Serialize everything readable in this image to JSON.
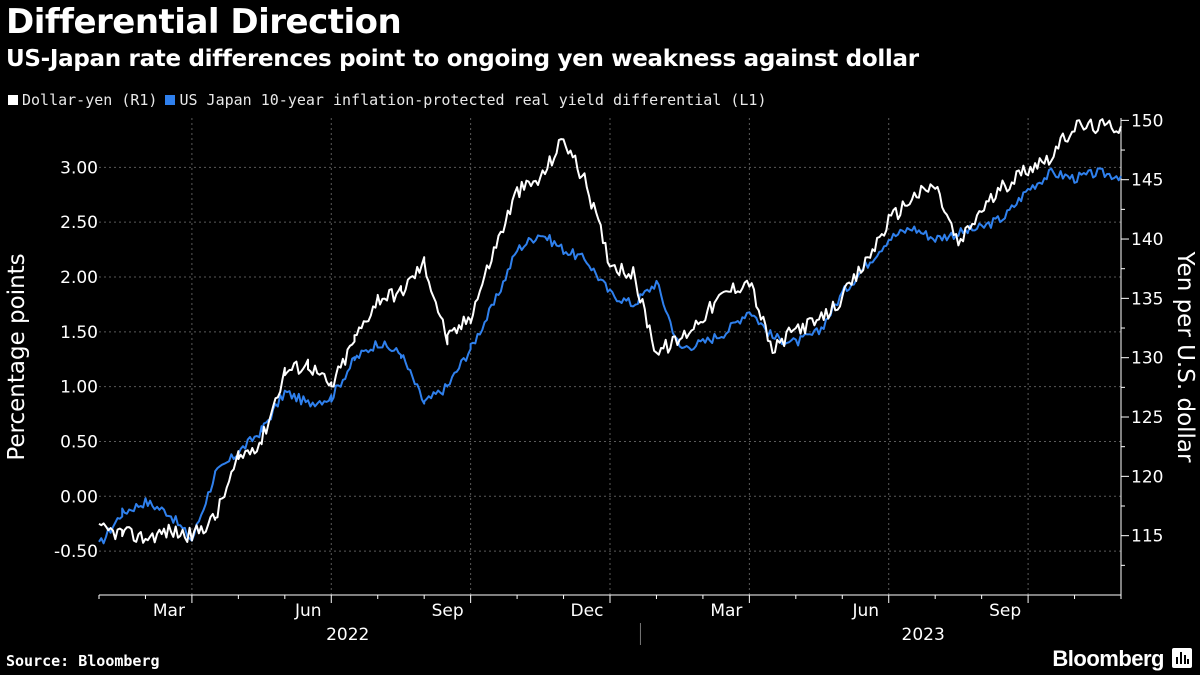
{
  "header": {
    "title": "Differential Direction",
    "subtitle": "US-Japan rate differences point to ongoing yen weakness against dollar"
  },
  "footer": {
    "source": "Source: Bloomberg",
    "brand": "Bloomberg"
  },
  "colors": {
    "background": "#000000",
    "dollar_yen": "#ffffff",
    "real_yield_diff": "#2f80ed",
    "grid": "#5a5a5a"
  },
  "chart_data": {
    "type": "line",
    "title": "Differential Direction",
    "subtitle": "US-Japan rate differences point to ongoing yen weakness against dollar",
    "ylabel_left": "Percentage points",
    "ylabel_right": "Yen per U.S. dollar",
    "ylim_left": [
      -0.9,
      3.45
    ],
    "ylim_right": [
      110,
      150.2
    ],
    "yticks_left": [
      "-0.50",
      "0.00",
      "0.50",
      "1.00",
      "1.50",
      "2.00",
      "2.50",
      "3.00"
    ],
    "yticks_right": [
      "115",
      "120",
      "125",
      "130",
      "135",
      "140",
      "145",
      "150"
    ],
    "x_range": [
      "2022-01-01",
      "2023-10-31"
    ],
    "xticks": [
      "Mar",
      "Jun",
      "Sep",
      "Dec",
      "Mar",
      "Jun",
      "Sep"
    ],
    "year_labels": [
      "2022",
      "2023"
    ],
    "grid": true,
    "legend_position": "top-left",
    "series": [
      {
        "name": "Dollar-yen (R1)",
        "axis": "right",
        "color": "#ffffff",
        "x": [
          0,
          0.5,
          1,
          1.5,
          2,
          2.5,
          3,
          3.5,
          4,
          4.5,
          5,
          5.5,
          6,
          6.5,
          7,
          7.5,
          8,
          8.5,
          9,
          9.5,
          10,
          10.5,
          11,
          11.5,
          12,
          12.5,
          13,
          13.5,
          14,
          14.5,
          15,
          15.5,
          16,
          16.5,
          17,
          17.5,
          18,
          18.5,
          19,
          19.5,
          20,
          20.5,
          21,
          21.5,
          22
        ],
        "values": [
          115.5,
          115.2,
          114.8,
          115.4,
          115.0,
          116.5,
          121.5,
          123.0,
          128.8,
          129.5,
          127.5,
          131.5,
          135.0,
          135.5,
          138.0,
          131.5,
          133.5,
          139.0,
          144.0,
          145.0,
          148.5,
          144.5,
          138.0,
          137.0,
          130.5,
          131.5,
          133.5,
          135.5,
          136.5,
          130.5,
          132.5,
          133.0,
          135.0,
          138.0,
          141.5,
          143.5,
          144.5,
          139.5,
          142.5,
          144.5,
          146.0,
          147.0,
          149.5,
          149.5,
          149.5
        ]
      },
      {
        "name": "US Japan 10-year inflation-protected real yield differential (L1)",
        "axis": "left",
        "color": "#2f80ed",
        "x": [
          0,
          0.5,
          1,
          1.5,
          2,
          2.5,
          3,
          3.5,
          4,
          4.5,
          5,
          5.5,
          6,
          6.5,
          7,
          7.5,
          8,
          8.5,
          9,
          9.5,
          10,
          10.5,
          11,
          11.5,
          12,
          12.5,
          13,
          13.5,
          14,
          14.5,
          15,
          15.5,
          16,
          16.5,
          17,
          17.5,
          18,
          18.5,
          19,
          19.5,
          20,
          20.5,
          21,
          21.5,
          22
        ],
        "values": [
          -0.45,
          -0.15,
          -0.05,
          -0.15,
          -0.4,
          0.2,
          0.4,
          0.6,
          0.95,
          0.85,
          0.9,
          1.25,
          1.4,
          1.3,
          0.85,
          1.0,
          1.35,
          1.75,
          2.25,
          2.4,
          2.25,
          2.15,
          1.85,
          1.75,
          1.95,
          1.35,
          1.4,
          1.5,
          1.7,
          1.45,
          1.4,
          1.5,
          1.85,
          2.1,
          2.35,
          2.45,
          2.35,
          2.4,
          2.45,
          2.55,
          2.8,
          2.95,
          2.9,
          2.95,
          2.92
        ]
      }
    ]
  }
}
